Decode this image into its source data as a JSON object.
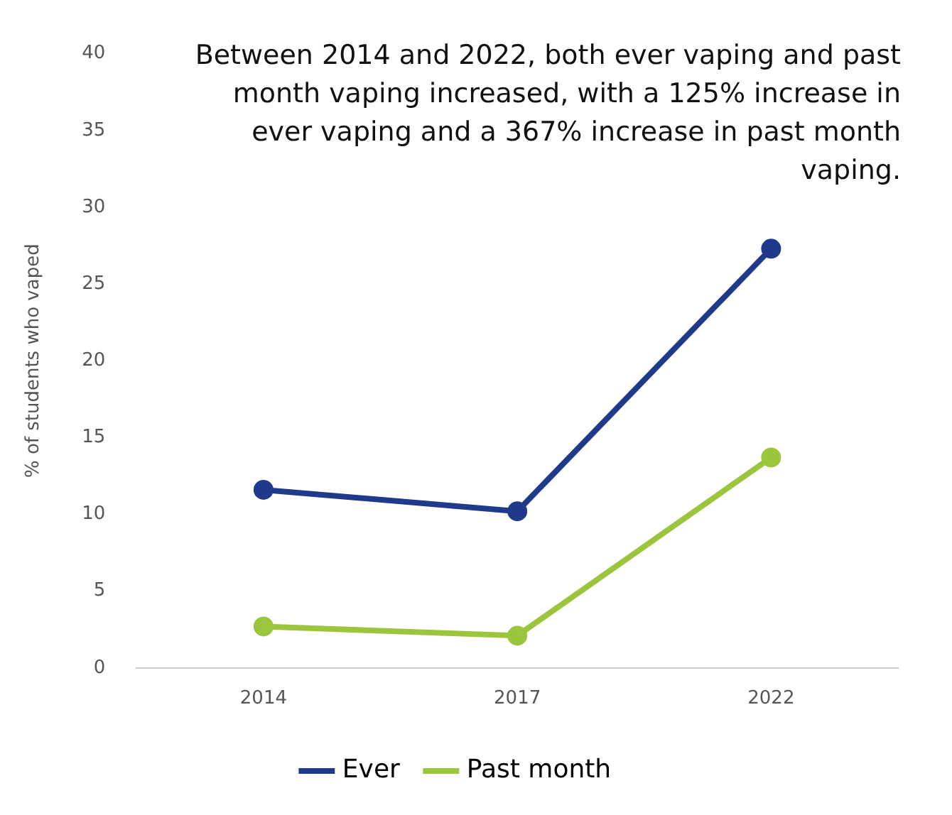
{
  "chart_data": {
    "type": "line",
    "categories": [
      "2014",
      "2017",
      "2022"
    ],
    "ylabel": "% of students who vaped",
    "ylim": [
      0,
      40
    ],
    "yticks": [
      0,
      5,
      10,
      15,
      20,
      25,
      30,
      35,
      40
    ],
    "grid": false,
    "legend": "bottom",
    "marker": "circle",
    "line_style": "solid",
    "annotations": [
      "Between 2014 and 2022, both ever vaping and past month vaping increased, with a 125% increase in ever vaping and a 367% increase in past month vaping."
    ],
    "series": [
      {
        "name": "Ever",
        "color": "#1f3a8a",
        "values": [
          11.6,
          10.2,
          27.3
        ]
      },
      {
        "name": "Past month",
        "color": "#9bc53d",
        "values": [
          2.7,
          2.1,
          13.7
        ]
      }
    ]
  }
}
